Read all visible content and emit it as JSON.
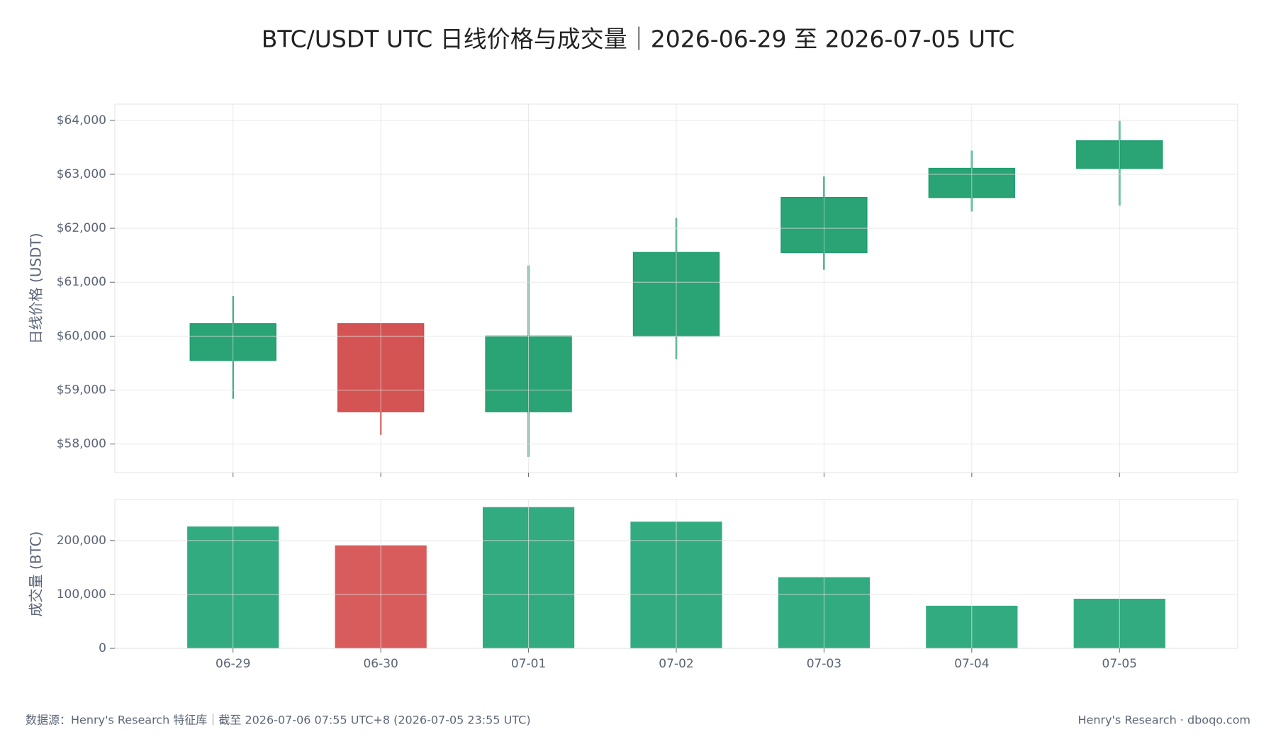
{
  "chart_data": [
    {
      "type": "candlestick",
      "title": "BTC/USDT UTC 日线价格与成交量｜2026-06-29 至 2026-07-05 UTC",
      "ylabel": "日线价格 (USDT)",
      "categories": [
        "06-29",
        "06-30",
        "07-01",
        "07-02",
        "07-03",
        "07-04",
        "07-05"
      ],
      "open": [
        59550,
        60230,
        58600,
        60000,
        61550,
        62570,
        63110
      ],
      "high": [
        60740,
        60240,
        61310,
        62190,
        62960,
        63440,
        63990
      ],
      "low": [
        58840,
        58170,
        57760,
        59570,
        61230,
        62310,
        62420
      ],
      "close": [
        60230,
        58600,
        60000,
        61550,
        62570,
        63110,
        63620
      ],
      "increasing_color": "#1f9e6e",
      "decreasing_color": "#d24b4b",
      "ylim": [
        57470,
        64300
      ],
      "yticks": [
        {
          "value": 58000,
          "label": "$58,000"
        },
        {
          "value": 59000,
          "label": "$59,000"
        },
        {
          "value": 60000,
          "label": "$60,000"
        },
        {
          "value": 61000,
          "label": "$61,000"
        },
        {
          "value": 62000,
          "label": "$62,000"
        },
        {
          "value": 63000,
          "label": "$63,000"
        },
        {
          "value": 64000,
          "label": "$64,000"
        }
      ],
      "grid": true
    },
    {
      "type": "bar",
      "ylabel": "成交量 (BTC)",
      "categories": [
        "06-29",
        "06-30",
        "07-01",
        "07-02",
        "07-03",
        "07-04",
        "07-05"
      ],
      "values": [
        226000,
        191000,
        262000,
        235000,
        132000,
        79000,
        92000
      ],
      "colors": [
        "#33ab80",
        "#d95c5c",
        "#33ab80",
        "#33ab80",
        "#33ab80",
        "#33ab80",
        "#33ab80"
      ],
      "ylim": [
        0,
        276000
      ],
      "yticks": [
        0,
        {
          "value": 100000,
          "label": "100,000"
        },
        {
          "value": 200000,
          "label": "200,000"
        }
      ],
      "grid": true
    }
  ],
  "footer": {
    "source": "数据源：Henry's Research 特征库｜截至 2026-07-06 07:55 UTC+8 (2026-07-05 23:55 UTC)",
    "brand": "Henry's Research · dboqo.com"
  }
}
